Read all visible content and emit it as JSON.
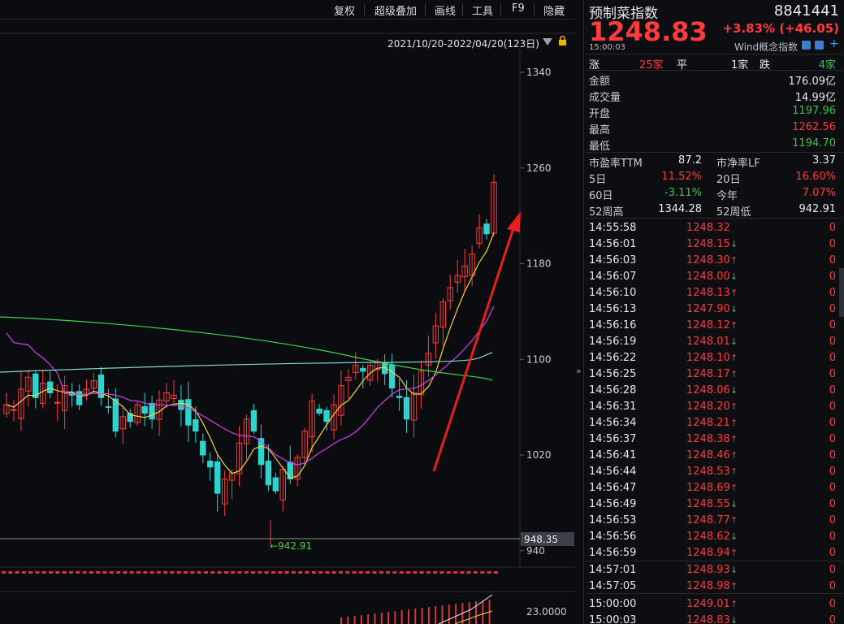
{
  "toolbar": {
    "buttons": [
      "复权",
      "超级叠加",
      "画线",
      "工具",
      "F9",
      "隐藏"
    ]
  },
  "chart": {
    "range_label": "2021/10/20-2022/04/20(123日)",
    "y_ticks": [
      "1340",
      "1260",
      "1180",
      "1100",
      "1020",
      "940"
    ],
    "low_marker": "942.91",
    "price_tag": "948.35",
    "sub_y_tick": "23.0000",
    "colors": {
      "up": "#ff3b3b",
      "down": "#2ed3cf",
      "ma5": "#f2f2f2",
      "ma10": "#f5d43a",
      "ma20": "#d542e8",
      "ma60": "#3cd44b",
      "ma120": "#7fd6d4",
      "arrow": "#e81f1f"
    }
  },
  "quote": {
    "name": "预制菜指数",
    "code": "8841441",
    "price": "1248.83",
    "change": "+3.83% (+46.05)",
    "time": "15:00:03",
    "source": "Wind概念指数",
    "breadth": {
      "up_label": "涨",
      "up_count": "25家",
      "flat_label": "平",
      "flat_count": "1家",
      "down_label": "跌",
      "down_count": "4家"
    },
    "stats": [
      {
        "label": "金额",
        "value": "176.09亿",
        "color": "white"
      },
      {
        "label": "成交量",
        "value": "14.99亿",
        "color": "white"
      },
      {
        "label": "开盘",
        "value": "1197.96",
        "color": "green"
      },
      {
        "label": "最高",
        "value": "1262.56",
        "color": "red"
      },
      {
        "label": "最低",
        "value": "1194.70",
        "color": "green"
      }
    ],
    "grid": [
      {
        "l1": "市盈率TTM",
        "v1": "87.2",
        "c1": "white",
        "l2": "市净率LF",
        "v2": "3.37",
        "c2": "white"
      },
      {
        "l1": "5日",
        "v1": "11.52%",
        "c1": "red",
        "l2": "20日",
        "v2": "16.60%",
        "c2": "red"
      },
      {
        "l1": "60日",
        "v1": "-3.11%",
        "c1": "green",
        "l2": "今年",
        "v2": "7.07%",
        "c2": "red"
      },
      {
        "l1": "52周高",
        "v1": "1344.28",
        "c1": "white",
        "l2": "52周低",
        "v2": "942.91",
        "c2": "white"
      }
    ],
    "ticks": [
      {
        "time": "14:55:58",
        "price": "1248.32",
        "dir": "",
        "vol": "0"
      },
      {
        "time": "14:56:01",
        "price": "1248.15",
        "dir": "down",
        "vol": "0"
      },
      {
        "time": "14:56:03",
        "price": "1248.30",
        "dir": "up",
        "vol": "0"
      },
      {
        "time": "14:56:07",
        "price": "1248.00",
        "dir": "down",
        "vol": "0"
      },
      {
        "time": "14:56:10",
        "price": "1248.13",
        "dir": "up",
        "vol": "0"
      },
      {
        "time": "14:56:13",
        "price": "1247.90",
        "dir": "down",
        "vol": "0"
      },
      {
        "time": "14:56:16",
        "price": "1248.12",
        "dir": "up",
        "vol": "0"
      },
      {
        "time": "14:56:19",
        "price": "1248.01",
        "dir": "down",
        "vol": "0"
      },
      {
        "time": "14:56:22",
        "price": "1248.10",
        "dir": "up",
        "vol": "0"
      },
      {
        "time": "14:56:25",
        "price": "1248.17",
        "dir": "up",
        "vol": "0"
      },
      {
        "time": "14:56:28",
        "price": "1248.06",
        "dir": "down",
        "vol": "0"
      },
      {
        "time": "14:56:31",
        "price": "1248.20",
        "dir": "up",
        "vol": "0"
      },
      {
        "time": "14:56:34",
        "price": "1248.21",
        "dir": "up",
        "vol": "0"
      },
      {
        "time": "14:56:37",
        "price": "1248.38",
        "dir": "up",
        "vol": "0"
      },
      {
        "time": "14:56:41",
        "price": "1248.46",
        "dir": "up",
        "vol": "0"
      },
      {
        "time": "14:56:44",
        "price": "1248.53",
        "dir": "up",
        "vol": "0"
      },
      {
        "time": "14:56:47",
        "price": "1248.69",
        "dir": "up",
        "vol": "0"
      },
      {
        "time": "14:56:49",
        "price": "1248.55",
        "dir": "down",
        "vol": "0"
      },
      {
        "time": "14:56:53",
        "price": "1248.77",
        "dir": "up",
        "vol": "0"
      },
      {
        "time": "14:56:56",
        "price": "1248.62",
        "dir": "down",
        "vol": "0"
      },
      {
        "time": "14:56:59",
        "price": "1248.94",
        "dir": "up",
        "vol": "0"
      },
      {
        "time": "14:57:01",
        "price": "1248.93",
        "dir": "down",
        "vol": "0"
      },
      {
        "time": "14:57:05",
        "price": "1248.98",
        "dir": "up",
        "vol": "0"
      },
      {
        "time": "15:00:00",
        "price": "1249.01",
        "dir": "up",
        "vol": "0"
      },
      {
        "time": "15:00:03",
        "price": "1248.83",
        "dir": "down",
        "vol": "0"
      }
    ]
  }
}
